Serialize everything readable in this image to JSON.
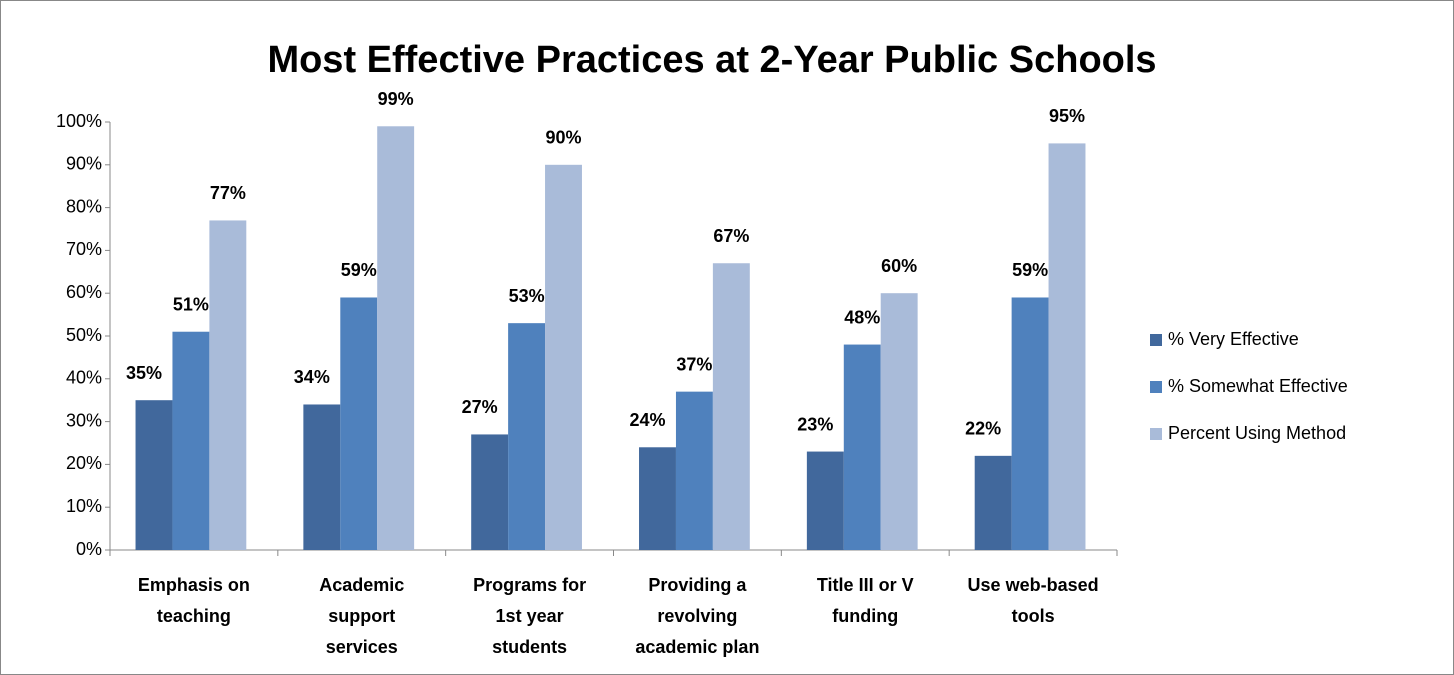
{
  "chart_data": {
    "type": "bar",
    "title": "Most Effective Practices at 2-Year Public Schools",
    "categories": [
      "Emphasis on teaching",
      "Academic support services",
      "Programs for 1st year students",
      "Providing a revolving academic plan",
      "Title III or V funding",
      "Use web-based tools"
    ],
    "series": [
      {
        "name": "% Very Effective",
        "color": "#41689c",
        "values": [
          35,
          34,
          27,
          24,
          23,
          22
        ],
        "value_labels": [
          "35%",
          "34%",
          "27%",
          "24%",
          "23%",
          "22%"
        ]
      },
      {
        "name": "% Somewhat Effective",
        "color": "#4f81bd",
        "values": [
          51,
          59,
          53,
          37,
          48,
          59
        ],
        "value_labels": [
          "51%",
          "59%",
          "53%",
          "37%",
          "48%",
          "59%"
        ]
      },
      {
        "name": "Percent Using Method",
        "color": "#a9bbd9",
        "values": [
          77,
          99,
          90,
          67,
          60,
          95
        ],
        "value_labels": [
          "77%",
          "99%",
          "90%",
          "67%",
          "60%",
          "95%"
        ]
      }
    ],
    "ylim": [
      0,
      100
    ],
    "yticks": [
      {
        "value": 0,
        "label": "0%"
      },
      {
        "value": 10,
        "label": "10%"
      },
      {
        "value": 20,
        "label": "20%"
      },
      {
        "value": 30,
        "label": "30%"
      },
      {
        "value": 40,
        "label": "40%"
      },
      {
        "value": 50,
        "label": "50%"
      },
      {
        "value": 60,
        "label": "60%"
      },
      {
        "value": 70,
        "label": "70%"
      },
      {
        "value": 80,
        "label": "80%"
      },
      {
        "value": 90,
        "label": "90%"
      },
      {
        "value": 100,
        "label": "100%"
      }
    ],
    "grid": false,
    "legend": "right"
  }
}
